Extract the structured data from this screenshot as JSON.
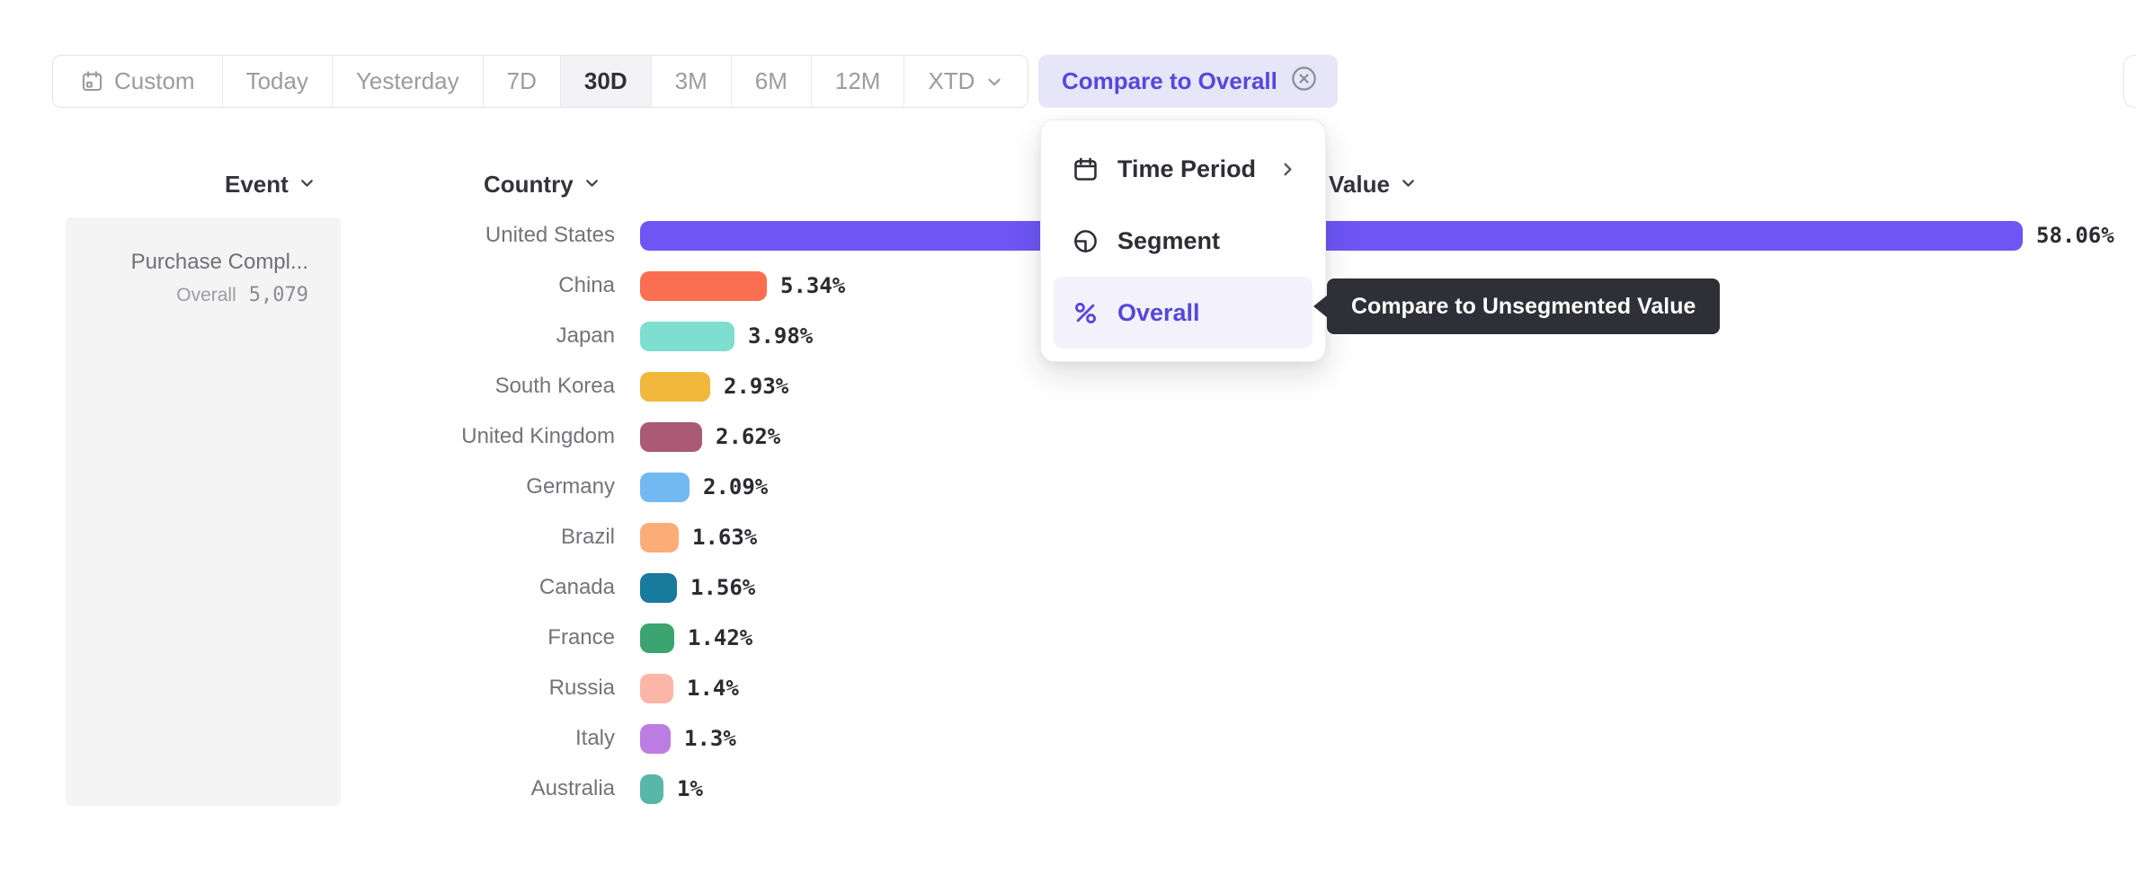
{
  "toolbar": {
    "items": [
      "Custom",
      "Today",
      "Yesterday",
      "7D",
      "30D",
      "3M",
      "6M",
      "12M",
      "XTD"
    ],
    "selected": "30D",
    "custom_icon": "calendar-icon",
    "xtd_icon": "chevron-down-icon",
    "compare_button": {
      "label": "Compare to Overall",
      "icon": "x-circle-icon"
    }
  },
  "columns": {
    "event": "Event",
    "country": "Country",
    "value": "Value"
  },
  "sidebar": {
    "event_name": "Purchase Compl...",
    "overall_label": "Overall",
    "overall_value": "5,079"
  },
  "menu": {
    "items": [
      {
        "label": "Time Period",
        "icon": "calendar-icon",
        "has_submenu": true
      },
      {
        "label": "Segment",
        "icon": "segment-icon",
        "has_submenu": false
      },
      {
        "label": "Overall",
        "icon": "percent-icon",
        "has_submenu": false,
        "active": true
      }
    ]
  },
  "tooltip": {
    "text": "Compare to Unsegmented Value"
  },
  "chart_data": {
    "type": "bar",
    "orientation": "horizontal",
    "title": "",
    "xlabel": "Value",
    "ylabel": "Country",
    "max_value": 58.06,
    "categories": [
      "United States",
      "China",
      "Japan",
      "South Korea",
      "United Kingdom",
      "Germany",
      "Brazil",
      "Canada",
      "France",
      "Russia",
      "Italy",
      "Australia"
    ],
    "values": [
      58.06,
      5.34,
      3.98,
      2.93,
      2.62,
      2.09,
      1.63,
      1.56,
      1.42,
      1.4,
      1.3,
      1
    ],
    "labels": [
      "58.06%",
      "5.34%",
      "3.98%",
      "2.93%",
      "2.62%",
      "2.09%",
      "1.63%",
      "1.56%",
      "1.42%",
      "1.4%",
      "1.3%",
      "1%"
    ],
    "colors": [
      "#6e55f4",
      "#fa6e51",
      "#7eded0",
      "#f0b83d",
      "#aa5a74",
      "#72b9f1",
      "#fbad78",
      "#187a9c",
      "#3ba471",
      "#fcb6a8",
      "#bc7de2",
      "#59b7aa"
    ]
  },
  "colors": {
    "accent": "#5847da",
    "accent_bg": "#e7e5f8",
    "menu_highlight_bg": "#f3f1fb",
    "tooltip_bg": "#2f3037",
    "panel_bg": "#f5f4f5",
    "selected_range_bg": "#f3f3f5"
  }
}
